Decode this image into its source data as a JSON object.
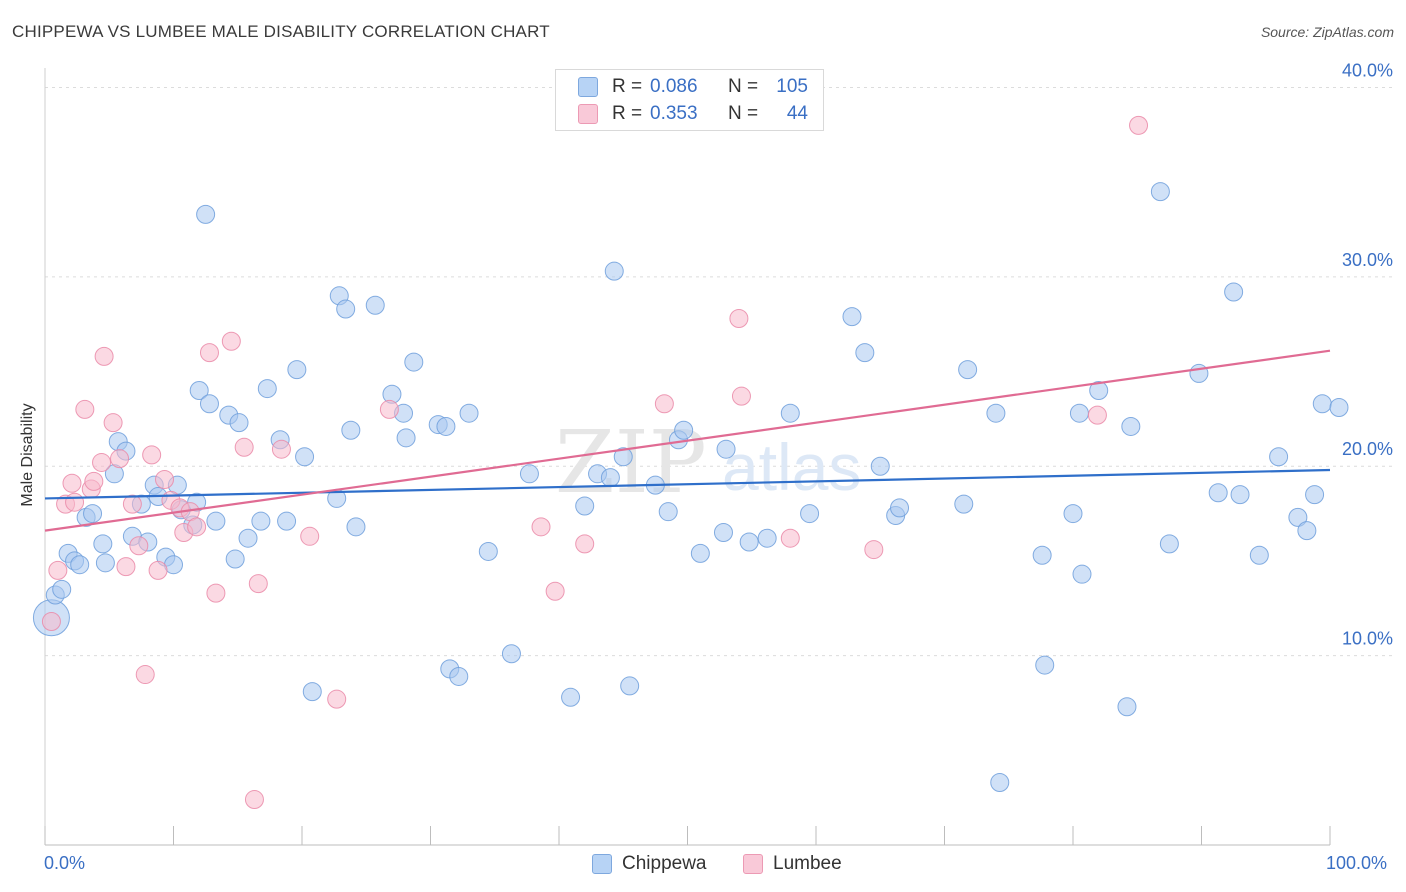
{
  "title": "CHIPPEWA VS LUMBEE MALE DISABILITY CORRELATION CHART",
  "source": "Source: ZipAtlas.com",
  "watermark": {
    "zip": "ZIP",
    "atlas": "atlas"
  },
  "legend": {
    "rows": [
      {
        "r_label": "R =",
        "r_value": "0.086",
        "n_label": "N =",
        "n_value": "105"
      },
      {
        "r_label": "R =",
        "r_value": "0.353",
        "n_label": "N =",
        "n_value": "44"
      }
    ]
  },
  "colors": {
    "chippewa_fill": "#a9c8f0",
    "chippewa_stroke": "#6f9fdc",
    "chippewa_line": "#2f6fca",
    "lumbee_fill": "#f7b9cc",
    "lumbee_stroke": "#ea8aa8",
    "lumbee_line": "#e06b93",
    "tick_label": "#3a6fc4",
    "grid": "#dcdcdc"
  },
  "chart_data": {
    "type": "scatter",
    "title": "CHIPPEWA VS LUMBEE MALE DISABILITY CORRELATION CHART",
    "xlabel": "",
    "ylabel": "Male Disability",
    "xlim": [
      0,
      100
    ],
    "ylim": [
      0,
      40.5
    ],
    "x_tick_labels": [
      "0.0%",
      "100.0%"
    ],
    "y_ticks": [
      10,
      20,
      30,
      40
    ],
    "y_tick_labels": [
      "10.0%",
      "20.0%",
      "30.0%",
      "40.0%"
    ],
    "grid": true,
    "legend_position": "bottom-center",
    "series": [
      {
        "name": "Chippewa",
        "r": 0.086,
        "n": 105,
        "trend": [
          [
            0,
            18.3
          ],
          [
            100,
            19.8
          ]
        ],
        "points": [
          [
            0.5,
            12.0
          ],
          [
            0.8,
            13.2
          ],
          [
            1.3,
            13.5
          ],
          [
            1.8,
            15.4
          ],
          [
            2.3,
            15.0
          ],
          [
            2.7,
            14.8
          ],
          [
            3.2,
            17.3
          ],
          [
            3.7,
            17.5
          ],
          [
            4.5,
            15.9
          ],
          [
            4.7,
            14.9
          ],
          [
            5.4,
            19.6
          ],
          [
            5.7,
            21.3
          ],
          [
            6.3,
            20.8
          ],
          [
            6.8,
            16.3
          ],
          [
            7.5,
            18.0
          ],
          [
            8.0,
            16.0
          ],
          [
            8.5,
            19.0
          ],
          [
            8.8,
            18.4
          ],
          [
            9.4,
            15.2
          ],
          [
            10.0,
            14.8
          ],
          [
            10.3,
            19.0
          ],
          [
            10.6,
            17.7
          ],
          [
            11.5,
            16.9
          ],
          [
            11.8,
            18.1
          ],
          [
            12.0,
            24.0
          ],
          [
            12.5,
            33.3
          ],
          [
            12.8,
            23.3
          ],
          [
            13.3,
            17.1
          ],
          [
            14.3,
            22.7
          ],
          [
            14.8,
            15.1
          ],
          [
            15.1,
            22.3
          ],
          [
            15.8,
            16.2
          ],
          [
            16.8,
            17.1
          ],
          [
            17.3,
            24.1
          ],
          [
            18.3,
            21.4
          ],
          [
            18.8,
            17.1
          ],
          [
            19.6,
            25.1
          ],
          [
            20.2,
            20.5
          ],
          [
            20.8,
            8.1
          ],
          [
            22.7,
            18.3
          ],
          [
            22.9,
            29.0
          ],
          [
            23.4,
            28.3
          ],
          [
            23.8,
            21.9
          ],
          [
            24.2,
            16.8
          ],
          [
            25.7,
            28.5
          ],
          [
            27.0,
            23.8
          ],
          [
            27.9,
            22.8
          ],
          [
            28.1,
            21.5
          ],
          [
            28.7,
            25.5
          ],
          [
            30.6,
            22.2
          ],
          [
            31.2,
            22.1
          ],
          [
            31.5,
            9.3
          ],
          [
            32.2,
            8.9
          ],
          [
            33.0,
            22.8
          ],
          [
            34.5,
            15.5
          ],
          [
            36.3,
            10.1
          ],
          [
            37.7,
            19.6
          ],
          [
            40.9,
            7.8
          ],
          [
            42.0,
            17.9
          ],
          [
            43.0,
            19.6
          ],
          [
            44.0,
            19.4
          ],
          [
            44.3,
            30.3
          ],
          [
            45.0,
            20.5
          ],
          [
            45.5,
            8.4
          ],
          [
            47.5,
            19.0
          ],
          [
            48.5,
            17.6
          ],
          [
            49.3,
            21.4
          ],
          [
            49.7,
            21.9
          ],
          [
            51.0,
            15.4
          ],
          [
            53.0,
            20.9
          ],
          [
            52.8,
            16.5
          ],
          [
            54.8,
            16.0
          ],
          [
            56.2,
            16.2
          ],
          [
            58.0,
            22.8
          ],
          [
            59.5,
            17.5
          ],
          [
            62.8,
            27.9
          ],
          [
            63.8,
            26.0
          ],
          [
            65.0,
            20.0
          ],
          [
            66.2,
            17.4
          ],
          [
            66.5,
            17.8
          ],
          [
            71.5,
            18.0
          ],
          [
            71.8,
            25.1
          ],
          [
            74.0,
            22.8
          ],
          [
            74.3,
            3.3
          ],
          [
            77.6,
            15.3
          ],
          [
            77.8,
            9.5
          ],
          [
            80.0,
            17.5
          ],
          [
            80.7,
            14.3
          ],
          [
            80.5,
            22.8
          ],
          [
            82.0,
            24.0
          ],
          [
            84.2,
            7.3
          ],
          [
            84.5,
            22.1
          ],
          [
            86.8,
            34.5
          ],
          [
            87.5,
            15.9
          ],
          [
            89.8,
            24.9
          ],
          [
            92.5,
            29.2
          ],
          [
            91.3,
            18.6
          ],
          [
            93.0,
            18.5
          ],
          [
            94.5,
            15.3
          ],
          [
            96.0,
            20.5
          ],
          [
            97.5,
            17.3
          ],
          [
            98.2,
            16.6
          ],
          [
            98.8,
            18.5
          ],
          [
            99.4,
            23.3
          ],
          [
            100.7,
            23.1
          ]
        ]
      },
      {
        "name": "Lumbee",
        "r": 0.353,
        "n": 44,
        "trend": [
          [
            0,
            16.6
          ],
          [
            100,
            26.1
          ]
        ],
        "points": [
          [
            0.5,
            11.8
          ],
          [
            1.0,
            14.5
          ],
          [
            1.6,
            18.0
          ],
          [
            2.1,
            19.1
          ],
          [
            2.3,
            18.1
          ],
          [
            3.1,
            23.0
          ],
          [
            3.6,
            18.8
          ],
          [
            3.8,
            19.2
          ],
          [
            4.4,
            20.2
          ],
          [
            4.6,
            25.8
          ],
          [
            5.3,
            22.3
          ],
          [
            5.8,
            20.4
          ],
          [
            6.3,
            14.7
          ],
          [
            6.8,
            18.0
          ],
          [
            7.3,
            15.8
          ],
          [
            7.8,
            9.0
          ],
          [
            8.3,
            20.6
          ],
          [
            8.8,
            14.5
          ],
          [
            9.3,
            19.3
          ],
          [
            9.8,
            18.2
          ],
          [
            10.5,
            17.8
          ],
          [
            10.8,
            16.5
          ],
          [
            11.3,
            17.6
          ],
          [
            11.8,
            16.8
          ],
          [
            12.8,
            26.0
          ],
          [
            13.3,
            13.3
          ],
          [
            14.5,
            26.6
          ],
          [
            15.5,
            21.0
          ],
          [
            16.3,
            2.4
          ],
          [
            16.6,
            13.8
          ],
          [
            18.4,
            20.9
          ],
          [
            20.6,
            16.3
          ],
          [
            22.7,
            7.7
          ],
          [
            26.8,
            23.0
          ],
          [
            38.6,
            16.8
          ],
          [
            39.7,
            13.4
          ],
          [
            42.0,
            15.9
          ],
          [
            48.2,
            23.3
          ],
          [
            54.0,
            27.8
          ],
          [
            54.2,
            23.7
          ],
          [
            58.0,
            16.2
          ],
          [
            64.5,
            15.6
          ],
          [
            81.9,
            22.7
          ],
          [
            85.1,
            38.0
          ]
        ]
      }
    ]
  }
}
